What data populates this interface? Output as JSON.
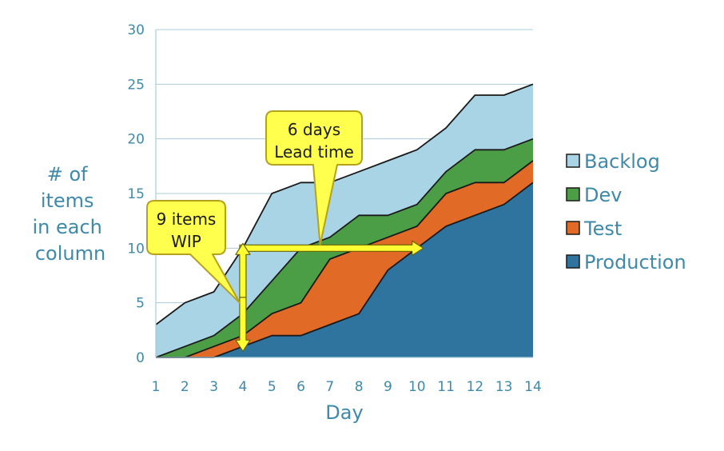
{
  "chart_data": {
    "type": "area",
    "stacked": true,
    "title": "",
    "xlabel": "Day",
    "ylabel_lines": [
      "# of",
      "items",
      "in each",
      "column"
    ],
    "x": [
      1,
      2,
      3,
      4,
      5,
      6,
      7,
      8,
      9,
      10,
      11,
      12,
      13,
      14
    ],
    "ylim": [
      0,
      30
    ],
    "yticks": [
      0,
      5,
      10,
      15,
      20,
      25,
      30
    ],
    "grid": "horizontal",
    "legend_position": "right",
    "series": [
      {
        "name": "Production",
        "color": "#2e749f",
        "values": [
          0,
          0,
          0,
          1,
          2,
          2,
          3,
          4,
          8,
          10,
          12,
          13,
          14,
          16
        ]
      },
      {
        "name": "Test",
        "color": "#e06a26",
        "values": [
          0,
          0,
          1,
          1,
          2,
          3,
          6,
          6,
          3,
          2,
          3,
          3,
          2,
          2
        ]
      },
      {
        "name": "Dev",
        "color": "#4b9e46",
        "values": [
          0,
          1,
          1,
          2,
          3,
          5,
          2,
          3,
          2,
          2,
          2,
          3,
          3,
          2
        ]
      },
      {
        "name": "Backlog",
        "color": "#a9d4e6",
        "values": [
          3,
          4,
          4,
          6,
          8,
          6,
          5,
          4,
          5,
          5,
          4,
          5,
          5,
          5
        ]
      }
    ],
    "legend_order": [
      "Backlog",
      "Dev",
      "Test",
      "Production"
    ],
    "annotations": [
      {
        "lines": [
          "6 days",
          "Lead time"
        ],
        "points_to": {
          "x": 6.8,
          "y": 10
        }
      },
      {
        "lines": [
          "9 items",
          "WIP"
        ],
        "points_to": {
          "x": 4,
          "y": 5
        }
      }
    ],
    "arrows": [
      {
        "name": "lead-time-arrow",
        "from": {
          "x": 4,
          "y": 10
        },
        "to": {
          "x": 10,
          "y": 10
        }
      },
      {
        "name": "wip-arrow",
        "from": {
          "x": 4,
          "y": 10
        },
        "to": {
          "x": 4,
          "y": 1
        }
      }
    ],
    "colors": {
      "axis_text": "#3e8aa8",
      "grid": "#a8cbd8",
      "outline": "#1a1a1a",
      "callout_fill": "#ffff4d",
      "callout_border": "#b5a21c",
      "arrow_fill": "#ffff33",
      "arrow_stroke": "#6a6200"
    }
  }
}
